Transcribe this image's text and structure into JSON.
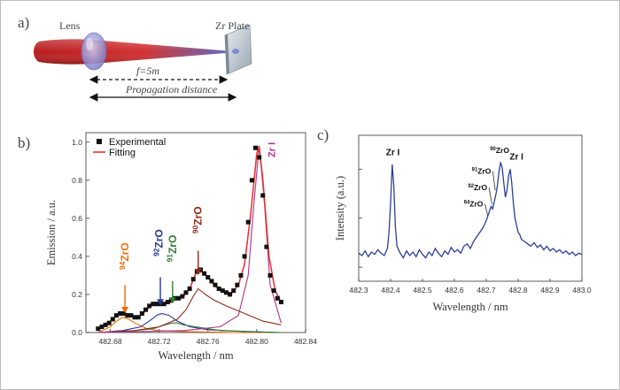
{
  "panel_labels": {
    "a": "a)",
    "b": "b)",
    "c": "c)"
  },
  "schematic": {
    "lens_label": "Lens",
    "plate_label": "Zr Plate",
    "focal_label": "f=5m",
    "propagation_label": "Propagation distance",
    "beam_color": "#c62828",
    "lens_color": "#8e8ed6",
    "plate_color": "#aeb8c2"
  },
  "chart_data": [
    {
      "panel": "b",
      "type": "line",
      "xlabel": "Wavelength / nm",
      "ylabel": "Emission / a.u.",
      "xlim": [
        482.66,
        482.84
      ],
      "ylim": [
        0.0,
        1.05
      ],
      "xticks": [
        "482.68",
        "482.72",
        "482.76",
        "482.80",
        "482.84"
      ],
      "yticks": [
        "0.0",
        "0.2",
        "0.4",
        "0.6",
        "0.8",
        "1.0"
      ],
      "legend": {
        "placement": "top-left",
        "entries": [
          "Experimental",
          "Fitting"
        ]
      },
      "series": [
        {
          "name": "Experimental",
          "marker": "square",
          "color": "#000000",
          "x": [
            482.67,
            482.673,
            482.676,
            482.679,
            482.682,
            482.685,
            482.688,
            482.691,
            482.694,
            482.697,
            482.7,
            482.703,
            482.706,
            482.709,
            482.712,
            482.715,
            482.718,
            482.721,
            482.724,
            482.727,
            482.73,
            482.733,
            482.736,
            482.739,
            482.742,
            482.745,
            482.748,
            482.751,
            482.754,
            482.757,
            482.76,
            482.763,
            482.766,
            482.769,
            482.772,
            482.775,
            482.778,
            482.781,
            482.784,
            482.787,
            482.79,
            482.793,
            482.796,
            482.799,
            482.802,
            482.805,
            482.808,
            482.811,
            482.814,
            482.817,
            482.82
          ],
          "y": [
            0.02,
            0.03,
            0.04,
            0.05,
            0.07,
            0.09,
            0.1,
            0.1,
            0.09,
            0.09,
            0.08,
            0.08,
            0.1,
            0.12,
            0.14,
            0.15,
            0.15,
            0.15,
            0.15,
            0.16,
            0.17,
            0.18,
            0.18,
            0.19,
            0.21,
            0.23,
            0.28,
            0.32,
            0.33,
            0.31,
            0.29,
            0.27,
            0.25,
            0.23,
            0.22,
            0.21,
            0.2,
            0.22,
            0.25,
            0.3,
            0.4,
            0.58,
            0.8,
            0.97,
            0.92,
            0.72,
            0.45,
            0.3,
            0.22,
            0.18,
            0.16
          ]
        },
        {
          "name": "Fitting",
          "color": "#e53935",
          "x": [
            482.67,
            482.675,
            482.68,
            482.685,
            482.69,
            482.695,
            482.7,
            482.705,
            482.71,
            482.715,
            482.72,
            482.725,
            482.73,
            482.735,
            482.74,
            482.745,
            482.75,
            482.755,
            482.76,
            482.765,
            482.77,
            482.775,
            482.78,
            482.785,
            482.79,
            482.795,
            482.8,
            482.802,
            482.805,
            482.81,
            482.815,
            482.82
          ],
          "y": [
            0.02,
            0.04,
            0.06,
            0.09,
            0.1,
            0.09,
            0.08,
            0.09,
            0.12,
            0.15,
            0.15,
            0.15,
            0.16,
            0.18,
            0.19,
            0.23,
            0.31,
            0.32,
            0.29,
            0.25,
            0.22,
            0.21,
            0.21,
            0.25,
            0.36,
            0.62,
            0.94,
            0.98,
            0.8,
            0.4,
            0.22,
            0.16
          ]
        },
        {
          "name": "",
          "color": "#ef6c00",
          "x": [
            482.67,
            482.68,
            482.685,
            482.69,
            482.695,
            482.7,
            482.71,
            482.72,
            482.74,
            482.78,
            482.82
          ],
          "y": [
            0.0,
            0.03,
            0.06,
            0.08,
            0.07,
            0.05,
            0.02,
            0.01,
            0.005,
            0.0,
            0.0
          ]
        },
        {
          "name": "",
          "color": "#283593",
          "x": [
            482.67,
            482.69,
            482.705,
            482.712,
            482.718,
            482.722,
            482.728,
            482.735,
            482.745,
            482.76,
            482.79,
            482.82
          ],
          "y": [
            0.0,
            0.01,
            0.03,
            0.06,
            0.09,
            0.1,
            0.09,
            0.06,
            0.03,
            0.015,
            0.005,
            0.0
          ]
        },
        {
          "name": "",
          "color": "#2e7d32",
          "x": [
            482.67,
            482.7,
            482.715,
            482.725,
            482.731,
            482.735,
            482.74,
            482.75,
            482.77,
            482.82
          ],
          "y": [
            0.0,
            0.01,
            0.02,
            0.04,
            0.05,
            0.05,
            0.04,
            0.03,
            0.01,
            0.0
          ]
        },
        {
          "name": "",
          "color": "#8d2a1c",
          "x": [
            482.67,
            482.7,
            482.72,
            482.735,
            482.742,
            482.748,
            482.752,
            482.758,
            482.765,
            482.775,
            482.79,
            482.805,
            482.82
          ],
          "y": [
            0.0,
            0.01,
            0.03,
            0.07,
            0.12,
            0.19,
            0.23,
            0.2,
            0.17,
            0.14,
            0.1,
            0.06,
            0.04
          ]
        },
        {
          "name": "",
          "color": "#b0338c",
          "x": [
            482.67,
            482.74,
            482.77,
            482.785,
            482.793,
            482.798,
            482.802,
            482.806,
            482.811,
            482.82
          ],
          "y": [
            0.0,
            0.01,
            0.03,
            0.09,
            0.3,
            0.7,
            0.98,
            0.7,
            0.25,
            0.05
          ]
        }
      ],
      "annotations": [
        {
          "text": "94ZrO",
          "sup": "94",
          "base": "ZrO",
          "color": "#ef6c00",
          "x": 482.692,
          "y": 0.33
        },
        {
          "text": "92ZrO",
          "sup": "92",
          "base": "ZrO",
          "color": "#283593",
          "x": 482.72,
          "y": 0.4
        },
        {
          "text": "91ZrO",
          "sup": "91",
          "base": "ZrO",
          "color": "#2e7d32",
          "x": 482.731,
          "y": 0.37
        },
        {
          "text": "90ZrO",
          "sup": "90",
          "base": "ZrO",
          "color": "#8d2a1c",
          "x": 482.752,
          "y": 0.52
        },
        {
          "text": "Zr I",
          "sup": "",
          "base": "Zr I",
          "color": "#b0338c",
          "x": 482.812,
          "y": 0.92
        }
      ]
    },
    {
      "panel": "c",
      "type": "line",
      "xlabel": "Wavelength / nm",
      "ylabel": "Intensity (a.u.)",
      "xlim": [
        482.3,
        483.0
      ],
      "xticks": [
        "482.3",
        "482.4",
        "482.5",
        "482.6",
        "482.7",
        "482.8",
        "482.9",
        "483.0"
      ],
      "yticks": [],
      "series": [
        {
          "name": "",
          "color": "#2b3f9c",
          "x": [
            482.3,
            482.31,
            482.32,
            482.33,
            482.34,
            482.35,
            482.36,
            482.37,
            482.38,
            482.39,
            482.395,
            482.4,
            482.405,
            482.41,
            482.415,
            482.42,
            482.43,
            482.44,
            482.45,
            482.46,
            482.47,
            482.48,
            482.49,
            482.5,
            482.51,
            482.52,
            482.53,
            482.54,
            482.55,
            482.56,
            482.57,
            482.58,
            482.59,
            482.6,
            482.61,
            482.62,
            482.63,
            482.64,
            482.65,
            482.66,
            482.67,
            482.68,
            482.69,
            482.7,
            482.71,
            482.715,
            482.72,
            482.725,
            482.73,
            482.735,
            482.74,
            482.745,
            482.75,
            482.755,
            482.76,
            482.765,
            482.77,
            482.775,
            482.78,
            482.785,
            482.79,
            482.795,
            482.8,
            482.805,
            482.81,
            482.82,
            482.83,
            482.84,
            482.85,
            482.86,
            482.87,
            482.88,
            482.89,
            482.9,
            482.91,
            482.92,
            482.93,
            482.94,
            482.95,
            482.96,
            482.97,
            482.98,
            482.99,
            483.0
          ],
          "y": [
            0.12,
            0.1,
            0.14,
            0.09,
            0.13,
            0.11,
            0.15,
            0.12,
            0.1,
            0.16,
            0.3,
            0.55,
            0.88,
            0.7,
            0.35,
            0.18,
            0.12,
            0.08,
            0.14,
            0.1,
            0.13,
            0.09,
            0.15,
            0.11,
            0.08,
            0.13,
            0.1,
            0.16,
            0.12,
            0.09,
            0.14,
            0.11,
            0.17,
            0.13,
            0.15,
            0.12,
            0.18,
            0.2,
            0.16,
            0.22,
            0.26,
            0.3,
            0.34,
            0.4,
            0.48,
            0.52,
            0.5,
            0.56,
            0.62,
            0.7,
            0.82,
            0.9,
            0.85,
            0.72,
            0.6,
            0.66,
            0.78,
            0.84,
            0.72,
            0.55,
            0.42,
            0.36,
            0.3,
            0.28,
            0.24,
            0.22,
            0.2,
            0.18,
            0.21,
            0.17,
            0.19,
            0.15,
            0.18,
            0.14,
            0.16,
            0.13,
            0.15,
            0.12,
            0.14,
            0.11,
            0.13,
            0.1,
            0.12,
            0.11
          ]
        }
      ],
      "annotations": [
        {
          "text": "Zr I",
          "sup": "",
          "base": "Zr I",
          "x": 482.407,
          "y": 0.96
        },
        {
          "text": "90ZrO",
          "sup": "90",
          "base": "ZrO",
          "x": 482.742,
          "y": 0.98
        },
        {
          "text": "Zr I",
          "sup": "",
          "base": "Zr I",
          "x": 482.795,
          "y": 0.92
        },
        {
          "text": "91ZrO",
          "sup": "91",
          "base": "ZrO",
          "x": 482.715,
          "y": 0.8
        },
        {
          "text": "92ZrO",
          "sup": "92",
          "base": "ZrO",
          "x": 482.703,
          "y": 0.66
        },
        {
          "text": "94ZrO",
          "sup": "94",
          "base": "ZrO",
          "x": 482.69,
          "y": 0.52
        }
      ]
    }
  ]
}
